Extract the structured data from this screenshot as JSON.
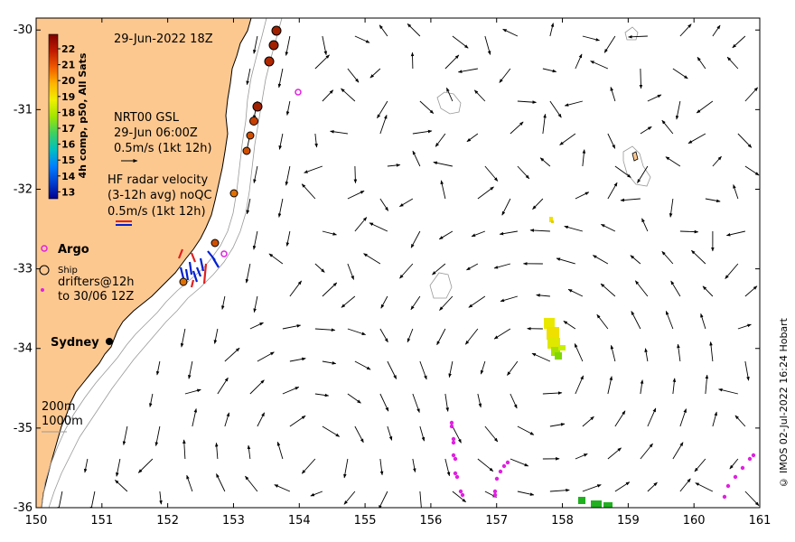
{
  "title": "29-Jun-2022 18Z",
  "colorbar": {
    "label": "4h comp, p50, All Sats",
    "ticks": [
      "22",
      "21",
      "20",
      "19",
      "18",
      "17",
      "16",
      "15",
      "14",
      "13"
    ],
    "colors": [
      "#7f0000",
      "#b71c00",
      "#f05a00",
      "#ffb400",
      "#f0f000",
      "#a0e600",
      "#40d060",
      "#00c0c0",
      "#0080ff",
      "#0040d0",
      "#000090"
    ]
  },
  "legend": {
    "gsl_title": "NRT00 GSL",
    "gsl_date": "29-Jun 06:00Z",
    "gsl_scale": "0.5m/s (1kt 12h)",
    "hf_title": "HF radar velocity",
    "hf_avg": "(3-12h avg) noQC",
    "hf_scale": "0.5m/s (1kt 12h)",
    "argo": "Argo",
    "ship": "Ship",
    "drifters1": "drifters@12h",
    "drifters2": "to 30/06 12Z",
    "depth1": "200m",
    "depth2": "1000m"
  },
  "place": {
    "sydney": "Sydney"
  },
  "axes": {
    "x_ticks": [
      "150",
      "151",
      "152",
      "153",
      "154",
      "155",
      "156",
      "157",
      "158",
      "159",
      "160",
      "161"
    ],
    "y_ticks": [
      "-30",
      "-31",
      "-32",
      "-33",
      "-34",
      "-35",
      "-36"
    ],
    "xlim": [
      150,
      161
    ],
    "ylim": [
      -36,
      -29.85
    ]
  },
  "credit": "© IMOS 02-Jul-2022 16:24 Hobart",
  "colors": {
    "land": "#fdc890",
    "argo": "#e020e0",
    "drifter": "#e020e0",
    "ocean": "#ffffff"
  }
}
